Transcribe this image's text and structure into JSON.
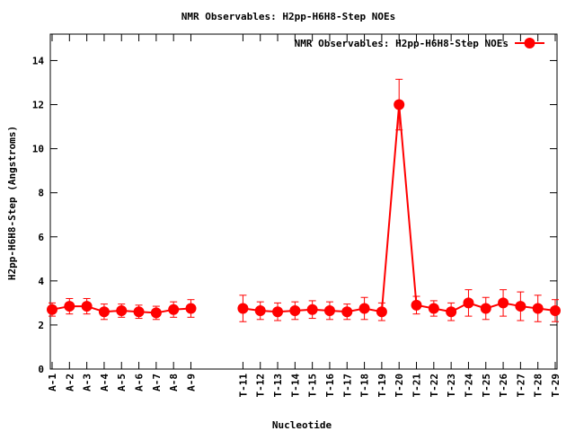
{
  "chart_data": {
    "type": "line",
    "title": "NMR Observables: H2pp-H6H8-Step NOEs",
    "xlabel": "Nucleotide",
    "ylabel": "H2pp-H6H8-Step (Angstroms)",
    "ylim": [
      0,
      15.2
    ],
    "yticks": [
      0,
      2,
      4,
      6,
      8,
      10,
      12,
      14
    ],
    "grid": false,
    "legend_position": "top-right",
    "colors": {
      "series": "#ff0000",
      "axis": "#000000"
    },
    "categories": [
      "A-1",
      "A-2",
      "A-3",
      "A-4",
      "A-5",
      "A-6",
      "A-7",
      "A-8",
      "A-9",
      "",
      "",
      "T-11",
      "T-12",
      "T-13",
      "T-14",
      "T-15",
      "T-16",
      "T-17",
      "T-18",
      "T-19",
      "T-20",
      "T-21",
      "T-22",
      "T-23",
      "T-24",
      "T-25",
      "T-26",
      "T-27",
      "T-28",
      "T-29"
    ],
    "series": [
      {
        "name": "NMR Observables: H2pp-H6H8-Step NOEs",
        "segments": [
          {
            "x": [
              "A-1",
              "A-2",
              "A-3",
              "A-4",
              "A-5",
              "A-6",
              "A-7",
              "A-8",
              "A-9"
            ],
            "values": [
              2.7,
              2.85,
              2.85,
              2.6,
              2.65,
              2.6,
              2.55,
              2.7,
              2.75
            ],
            "err_low": [
              0.3,
              0.35,
              0.35,
              0.35,
              0.3,
              0.3,
              0.3,
              0.35,
              0.4
            ],
            "err_high": [
              0.3,
              0.35,
              0.35,
              0.35,
              0.3,
              0.3,
              0.3,
              0.35,
              0.4
            ]
          },
          {
            "x": [
              "T-11",
              "T-12",
              "T-13",
              "T-14",
              "T-15",
              "T-16",
              "T-17",
              "T-18",
              "T-19",
              "T-20",
              "T-21",
              "T-22",
              "T-23",
              "T-24",
              "T-25",
              "T-26",
              "T-27",
              "T-28",
              "T-29"
            ],
            "values": [
              2.75,
              2.65,
              2.6,
              2.65,
              2.7,
              2.65,
              2.6,
              2.75,
              2.6,
              12.0,
              2.9,
              2.75,
              2.6,
              3.0,
              2.75,
              3.0,
              2.85,
              2.75,
              2.65
            ],
            "err_low": [
              0.6,
              0.4,
              0.4,
              0.4,
              0.4,
              0.4,
              0.35,
              0.5,
              0.4,
              1.15,
              0.4,
              0.35,
              0.4,
              0.6,
              0.5,
              0.6,
              0.65,
              0.6,
              0.5
            ],
            "err_high": [
              0.6,
              0.4,
              0.4,
              0.4,
              0.4,
              0.4,
              0.35,
              0.5,
              0.4,
              1.15,
              0.4,
              0.35,
              0.4,
              0.6,
              0.5,
              0.6,
              0.65,
              0.6,
              0.5
            ]
          }
        ]
      }
    ]
  }
}
